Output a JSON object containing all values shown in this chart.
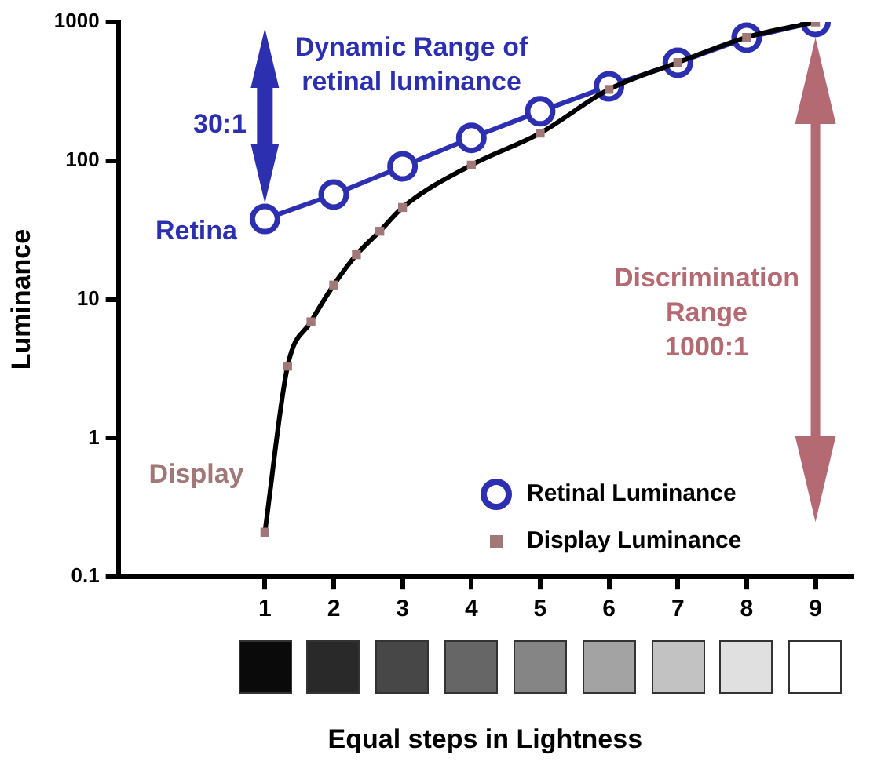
{
  "chart_data": {
    "type": "line",
    "xlabel": "Equal steps in Lightness",
    "ylabel": "Luminance",
    "xlim": [
      -1.13,
      9.53
    ],
    "xticks": [
      1,
      2,
      3,
      4,
      5,
      6,
      7,
      8,
      9
    ],
    "ylim": [
      0.1,
      1000
    ],
    "yticks": [
      0.1,
      1,
      10,
      100,
      1000
    ],
    "log": "y",
    "grid": false,
    "legend": "bottom right",
    "series": [
      {
        "name": "Retinal Luminance",
        "marker": "circle",
        "color": "#2b2fb0",
        "x": [
          1,
          2,
          3,
          4,
          5,
          6,
          7,
          8,
          9
        ],
        "values": [
          38,
          57,
          91,
          146,
          227,
          344,
          508,
          770,
          1000
        ]
      },
      {
        "marker": "none",
        "color": "#000000",
        "x": [
          1,
          1.33,
          1.67,
          2,
          2.33,
          2.67,
          3,
          4,
          5,
          6,
          7,
          8,
          9
        ],
        "values": [
          0.21,
          3.3,
          6.9,
          12.7,
          21,
          31,
          46,
          93,
          158,
          327,
          510,
          775,
          1000
        ]
      },
      {
        "name": "Display Luminance",
        "type": "scatter",
        "marker": "square",
        "color": "#a07878",
        "x": [
          1,
          1.33,
          1.67,
          2,
          2.33,
          2.67,
          3,
          4,
          5,
          6,
          7,
          8,
          9
        ],
        "values": [
          0.21,
          3.3,
          6.9,
          12.7,
          21,
          31,
          46,
          93,
          158,
          327,
          510,
          775,
          1000
        ]
      }
    ],
    "annotations": [
      "Dynamic Range of\nretinal luminance",
      "30:1",
      "Retina",
      "Display",
      "Discrimination\nRange\n1000:1"
    ]
  }
}
